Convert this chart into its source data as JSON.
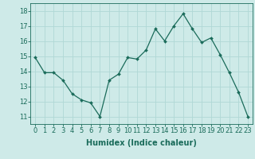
{
  "x": [
    0,
    1,
    2,
    3,
    4,
    5,
    6,
    7,
    8,
    9,
    10,
    11,
    12,
    13,
    14,
    15,
    16,
    17,
    18,
    19,
    20,
    21,
    22,
    23
  ],
  "y": [
    14.9,
    13.9,
    13.9,
    13.4,
    12.5,
    12.1,
    11.9,
    11.0,
    13.4,
    13.8,
    14.9,
    14.8,
    15.4,
    16.8,
    16.0,
    17.0,
    17.8,
    16.8,
    15.9,
    16.2,
    15.1,
    13.9,
    12.6,
    11.0
  ],
  "line_color": "#1a6b5a",
  "marker": "D",
  "marker_size": 2.0,
  "bg_color": "#ceeae8",
  "grid_color": "#b0d8d5",
  "xlabel": "Humidex (Indice chaleur)",
  "ylabel_ticks": [
    11,
    12,
    13,
    14,
    15,
    16,
    17,
    18
  ],
  "xlim": [
    -0.5,
    23.5
  ],
  "ylim": [
    10.5,
    18.5
  ],
  "tick_color": "#1a6b5a",
  "label_color": "#1a6b5a",
  "font_size": 6.0,
  "xlabel_fontsize": 7.0,
  "linewidth": 0.9
}
